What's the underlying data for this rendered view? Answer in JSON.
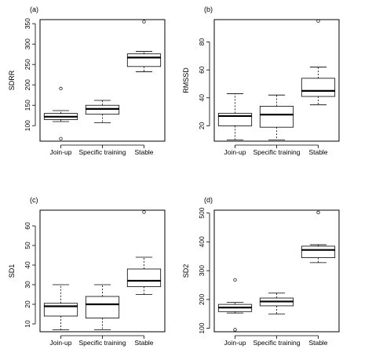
{
  "chart_data": [
    {
      "type": "box",
      "panel_label": "(a)",
      "ylabel": "SDRR",
      "categories": [
        "Join-up",
        "Specific training",
        "Stable"
      ],
      "yticks": [
        100,
        150,
        200,
        250,
        300,
        350
      ],
      "ylim": [
        62,
        360
      ],
      "boxes": [
        {
          "whisker_low": 110,
          "q1": 115,
          "median": 122,
          "q3": 130,
          "whisker_high": 137,
          "outliers": [
            191,
            68
          ]
        },
        {
          "whisker_low": 107,
          "q1": 128,
          "median": 141,
          "q3": 150,
          "whisker_high": 162,
          "outliers": []
        },
        {
          "whisker_low": 232,
          "q1": 245,
          "median": 267,
          "q3": 276,
          "whisker_high": 282,
          "outliers": [
            355
          ]
        }
      ]
    },
    {
      "type": "box",
      "panel_label": "(b)",
      "ylabel": "RMSSD",
      "categories": [
        "Join-up",
        "Specific training",
        "Stable"
      ],
      "yticks": [
        20,
        40,
        60,
        80
      ],
      "ylim": [
        9,
        96
      ],
      "boxes": [
        {
          "whisker_low": 10,
          "q1": 20,
          "median": 27,
          "q3": 29,
          "whisker_high": 43,
          "outliers": []
        },
        {
          "whisker_low": 10,
          "q1": 19,
          "median": 28,
          "q3": 34,
          "whisker_high": 42,
          "outliers": []
        },
        {
          "whisker_low": 35,
          "q1": 41,
          "median": 45,
          "q3": 54,
          "whisker_high": 62,
          "outliers": [
            95
          ]
        }
      ]
    },
    {
      "type": "box",
      "panel_label": "(c)",
      "ylabel": "SD1",
      "categories": [
        "Join-up",
        "Specific training",
        "Stable"
      ],
      "yticks": [
        10,
        20,
        30,
        40,
        50,
        60
      ],
      "ylim": [
        6,
        68
      ],
      "boxes": [
        {
          "whisker_low": 7,
          "q1": 14,
          "median": 19,
          "q3": 20.5,
          "whisker_high": 30,
          "outliers": []
        },
        {
          "whisker_low": 7,
          "q1": 13,
          "median": 20,
          "q3": 24,
          "whisker_high": 30,
          "outliers": []
        },
        {
          "whisker_low": 25,
          "q1": 29,
          "median": 32,
          "q3": 38,
          "whisker_high": 44,
          "outliers": [
            67
          ]
        }
      ]
    },
    {
      "type": "box",
      "panel_label": "(d)",
      "ylabel": "SD2",
      "categories": [
        "Join-up",
        "Specific training",
        "Stable"
      ],
      "yticks": [
        100,
        200,
        300,
        400,
        500
      ],
      "ylim": [
        88,
        510
      ],
      "boxes": [
        {
          "whisker_low": 153,
          "q1": 158,
          "median": 172,
          "q3": 183,
          "whisker_high": 190,
          "outliers": [
            268,
            95
          ]
        },
        {
          "whisker_low": 150,
          "q1": 178,
          "median": 193,
          "q3": 205,
          "whisker_high": 222,
          "outliers": []
        },
        {
          "whisker_low": 328,
          "q1": 345,
          "median": 372,
          "q3": 385,
          "whisker_high": 390,
          "outliers": [
            502
          ]
        }
      ]
    }
  ]
}
